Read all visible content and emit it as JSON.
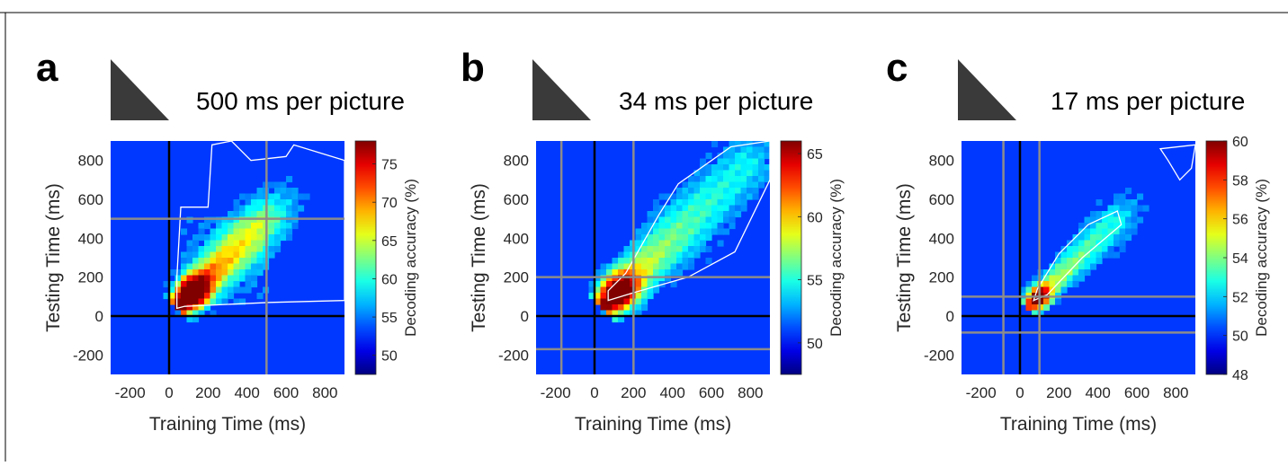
{
  "figure": {
    "panels": [
      {
        "letter": "a",
        "title": "500 ms per picture"
      },
      {
        "letter": "b",
        "title": "34 ms per picture"
      },
      {
        "letter": "c",
        "title": "17 ms per picture"
      }
    ]
  },
  "chart_data": [
    {
      "type": "heatmap",
      "panel": "a",
      "title": "500 ms per picture",
      "xlabel": "Training Time (ms)",
      "ylabel": "Testing Time (ms)",
      "colorbar_label": "Decoding accuracy (%)",
      "xlim": [
        -300,
        900
      ],
      "ylim": [
        -300,
        900
      ],
      "xticks": [
        -200,
        0,
        200,
        400,
        600,
        800
      ],
      "yticks": [
        -200,
        0,
        200,
        400,
        600,
        800
      ],
      "clim": [
        47.5,
        78
      ],
      "cticks": [
        50,
        55,
        60,
        65,
        70,
        75
      ],
      "stimulus_onset_lines": [
        0
      ],
      "stimulus_offset_lines": [
        500
      ],
      "peak": {
        "x": 110,
        "y": 110,
        "value": 77
      },
      "significance_contour_color": "#ffffff"
    },
    {
      "type": "heatmap",
      "panel": "b",
      "title": "34 ms per picture",
      "xlabel": "Training Time (ms)",
      "ylabel": "Testing Time (ms)",
      "colorbar_label": "Decoding accuracy (%)",
      "xlim": [
        -300,
        900
      ],
      "ylim": [
        -300,
        900
      ],
      "xticks": [
        -200,
        0,
        200,
        400,
        600,
        800
      ],
      "yticks": [
        -200,
        0,
        200,
        400,
        600,
        800
      ],
      "clim": [
        47.5,
        66
      ],
      "cticks": [
        50,
        55,
        60,
        65
      ],
      "stimulus_onset_lines": [
        0
      ],
      "stimulus_offset_lines": [
        -170,
        200
      ],
      "peak": {
        "x": 110,
        "y": 110,
        "value": 65
      },
      "significance_contour_color": "#ffffff"
    },
    {
      "type": "heatmap",
      "panel": "c",
      "title": "17 ms per picture",
      "xlabel": "Training Time (ms)",
      "ylabel": "Testing Time (ms)",
      "colorbar_label": "Decoding accuracy (%)",
      "xlim": [
        -300,
        900
      ],
      "ylim": [
        -300,
        900
      ],
      "xticks": [
        -200,
        0,
        200,
        400,
        600,
        800
      ],
      "yticks": [
        -200,
        0,
        200,
        400,
        600,
        800
      ],
      "clim": [
        48,
        60
      ],
      "cticks": [
        48,
        50,
        52,
        54,
        56,
        58,
        60
      ],
      "stimulus_onset_lines": [
        0
      ],
      "stimulus_offset_lines": [
        -85,
        100
      ],
      "peak": {
        "x": 100,
        "y": 100,
        "value": 59
      },
      "significance_contour_color": "#ffffff"
    }
  ]
}
